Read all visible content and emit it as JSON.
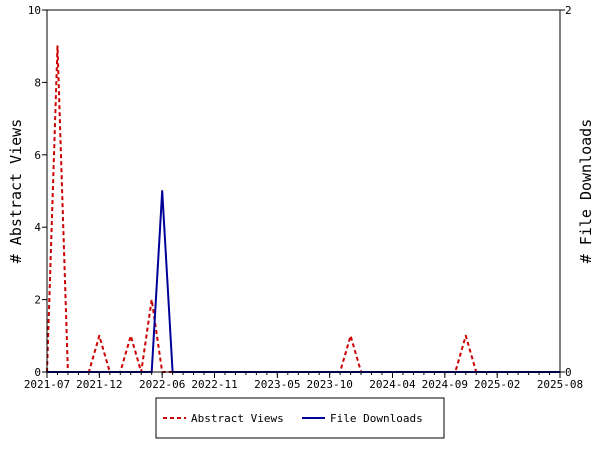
{
  "chart_data": {
    "type": "line",
    "title": "",
    "x": [
      "2021-07",
      "2021-08",
      "2021-09",
      "2021-10",
      "2021-11",
      "2021-12",
      "2022-01",
      "2022-02",
      "2022-03",
      "2022-04",
      "2022-05",
      "2022-06",
      "2022-07",
      "2022-08",
      "2022-09",
      "2022-10",
      "2022-11",
      "2022-12",
      "2023-01",
      "2023-02",
      "2023-03",
      "2023-04",
      "2023-05",
      "2023-06",
      "2023-07",
      "2023-08",
      "2023-09",
      "2023-10",
      "2023-11",
      "2023-12",
      "2024-01",
      "2024-02",
      "2024-03",
      "2024-04",
      "2024-05",
      "2024-06",
      "2024-07",
      "2024-08",
      "2024-09",
      "2024-10",
      "2024-11",
      "2024-12",
      "2025-01",
      "2025-02",
      "2025-03",
      "2025-04",
      "2025-05",
      "2025-06",
      "2025-07",
      "2025-08"
    ],
    "xticks": [
      "2021-07",
      "2021-12",
      "2022-06",
      "2022-11",
      "2023-05",
      "2023-10",
      "2024-04",
      "2024-09",
      "2025-02",
      "2025-08"
    ],
    "ylabel": "# Abstract Views",
    "y2label": "# File Downloads",
    "ylim": [
      0,
      10
    ],
    "y2lim": [
      0,
      2
    ],
    "yticks": [
      0,
      2,
      4,
      6,
      8,
      10
    ],
    "y2ticks": [
      0,
      2
    ],
    "legend_position": "bottom",
    "grid": false,
    "series": [
      {
        "name": "Abstract Views",
        "axis": "left",
        "color": "#cc0000",
        "style": "dashed",
        "values": [
          0,
          9,
          0,
          0,
          0,
          1,
          0,
          0,
          1,
          0,
          2,
          0,
          0,
          0,
          0,
          0,
          0,
          0,
          0,
          0,
          0,
          0,
          0,
          0,
          0,
          0,
          0,
          0,
          0,
          1,
          0,
          0,
          0,
          0,
          0,
          0,
          0,
          0,
          0,
          0,
          1,
          0,
          0,
          0,
          0,
          0,
          0,
          0,
          0,
          0
        ]
      },
      {
        "name": "File Downloads",
        "axis": "right",
        "color": "#000099",
        "style": "solid",
        "values": [
          0,
          0,
          0,
          0,
          0,
          0,
          0,
          0,
          0,
          0,
          0,
          1,
          0,
          0,
          0,
          0,
          0,
          0,
          0,
          0,
          0,
          0,
          0,
          0,
          0,
          0,
          0,
          0,
          0,
          0,
          0,
          0,
          0,
          0,
          0,
          0,
          0,
          0,
          0,
          0,
          0,
          0,
          0,
          0,
          0,
          0,
          0,
          0,
          0,
          0
        ]
      }
    ]
  }
}
